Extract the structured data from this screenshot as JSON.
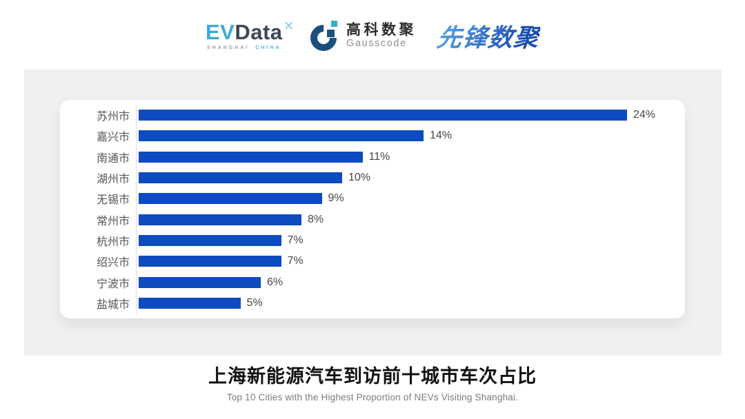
{
  "header": {
    "evdata": {
      "ev": "EV",
      "data": "Data",
      "star": "✕",
      "sub_left": "SHANGHAI",
      "sub_right": "CHINA"
    },
    "gausscode": {
      "cn": "高科数聚",
      "en": "Gausscode"
    },
    "pioneer": {
      "text": "先锋数聚"
    }
  },
  "chart_data": {
    "type": "bar",
    "orientation": "horizontal",
    "title": "上海新能源汽车到访前十城市车次占比",
    "subtitle": "Top 10 Cities with the Highest Proportion of  NEVs Visiting Shanghai.",
    "categories": [
      "苏州市",
      "嘉兴市",
      "南通市",
      "湖州市",
      "无锡市",
      "常州市",
      "杭州市",
      "绍兴市",
      "宁波市",
      "盐城市"
    ],
    "values": [
      24,
      14,
      11,
      10,
      9,
      8,
      7,
      7,
      6,
      5
    ],
    "value_labels": [
      "24%",
      "14%",
      "11%",
      "10%",
      "9%",
      "8%",
      "7%",
      "7%",
      "6%",
      "5%"
    ],
    "unit": "percent",
    "xlim": [
      0,
      27
    ],
    "grid": false,
    "legend": false,
    "bars_sorted_descending": true
  },
  "footer": {
    "title": "上海新能源汽车到访前十城市车次占比",
    "subtitle": "Top 10 Cities with the Highest Proportion of  NEVs Visiting Shanghai."
  },
  "colors": {
    "bar": "#0D4CC0",
    "panel_bg": "#F0F0F0",
    "card_bg": "#FFFFFF",
    "axis_line": "#DCDCDC",
    "category_text": "#555555",
    "value_text": "#454545",
    "title_text": "#121212",
    "subtitle_text": "#7A7A7A",
    "ev_blue": "#3FA9DC",
    "ev_dark": "#3D4756",
    "ev_star": "#8CCBEA",
    "ev_cyan": "#45BEDE",
    "ev_gray": "#9AA2AB",
    "gauss_navy": "#1B4F7E",
    "gauss_teal": "#2FB4C4",
    "gauss_cn": "#2B2B2B",
    "gauss_en": "#8A9096",
    "pioneer_from": "#59A4E6",
    "pioneer_to": "#1A4CB0"
  }
}
